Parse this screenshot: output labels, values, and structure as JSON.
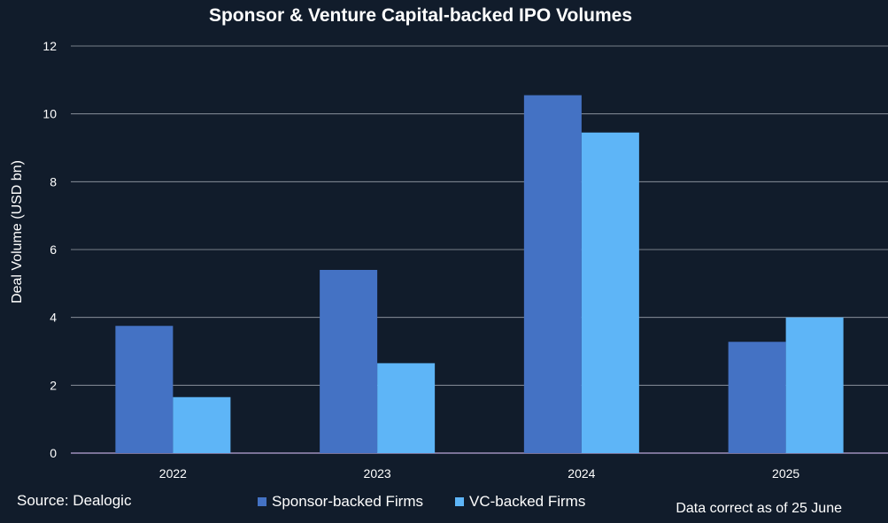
{
  "chart_data": {
    "type": "bar",
    "title": "Sponsor & Venture Capital-backed IPO Volumes",
    "categories": [
      "2022",
      "2023",
      "2024",
      "2025"
    ],
    "series": [
      {
        "name": "Sponsor-backed Firms",
        "values": [
          3.75,
          5.4,
          10.55,
          3.28
        ],
        "color": "#4472c4"
      },
      {
        "name": "VC-backed Firms",
        "values": [
          1.65,
          2.65,
          9.45,
          4.0
        ],
        "color": "#5eb5f7"
      }
    ],
    "xlabel": "",
    "ylabel": "Deal Volume (USD bn)",
    "ylim": [
      0,
      12
    ],
    "yticks": [
      "0",
      "2",
      "4",
      "6",
      "8",
      "10",
      "12"
    ],
    "grid": true,
    "legend": "bottom-center"
  },
  "footer": {
    "source": "Source: Dealogic",
    "note": "Data correct as of 25 June"
  }
}
